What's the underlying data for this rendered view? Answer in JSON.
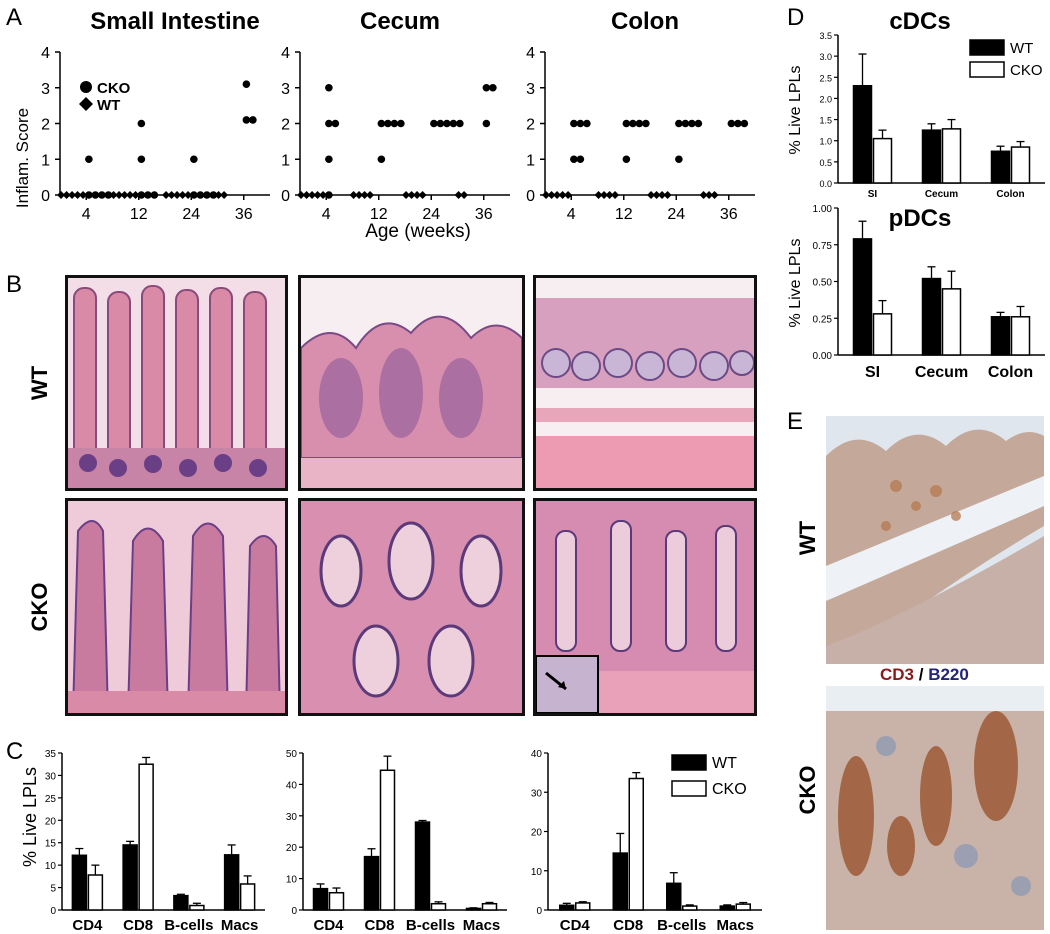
{
  "panels": {
    "A": {
      "label": "A",
      "titles": [
        "Small Intestine",
        "Cecum",
        "Colon"
      ],
      "ylabel": "Inflam. Score",
      "xlabel": "Age (weeks)",
      "legend": [
        "CKO",
        "WT"
      ]
    },
    "B": {
      "label": "B",
      "rows": [
        "WT",
        "CKO"
      ]
    },
    "C": {
      "label": "C",
      "ylabel": "% Live LPLs",
      "legend": [
        "WT",
        "CKO"
      ]
    },
    "D": {
      "label": "D",
      "titles": [
        "cDCs",
        "pDCs"
      ],
      "ylabel": "% Live LPLs",
      "legend": [
        "WT",
        "CKO"
      ]
    },
    "E": {
      "label": "E",
      "rows": [
        "WT",
        "CKO"
      ],
      "stain_cd3": "CD3",
      "stain_sep": " / ",
      "stain_b220": "B220"
    }
  },
  "chart_data": [
    {
      "type": "scatter",
      "panel": "A",
      "title": "Small Intestine",
      "ylabel": "Inflam. Score",
      "xlabel": "",
      "ylim": [
        0,
        4
      ],
      "x_ticks": [
        "4",
        "12",
        "24",
        "36"
      ],
      "series": [
        {
          "name": "WT",
          "groups": [
            [
              0,
              0,
              0,
              0,
              0
            ],
            [
              0,
              0,
              0,
              0,
              0
            ],
            [
              0,
              0,
              0,
              0,
              0
            ],
            [
              0,
              0
            ]
          ]
        },
        {
          "name": "CKO",
          "groups": [
            [
              1,
              0,
              0,
              0,
              0
            ],
            [
              2,
              1,
              0,
              0,
              0
            ],
            [
              1,
              0,
              0,
              0,
              0
            ],
            [
              3.1,
              2.1,
              2.1
            ]
          ]
        }
      ]
    },
    {
      "type": "scatter",
      "panel": "A",
      "title": "Cecum",
      "ylabel": "",
      "xlabel": "Age (weeks)",
      "ylim": [
        0,
        4
      ],
      "x_ticks": [
        "4",
        "12",
        "24",
        "36"
      ],
      "series": [
        {
          "name": "WT",
          "groups": [
            [
              0,
              0,
              0,
              0,
              0
            ],
            [
              0,
              0,
              0,
              0
            ],
            [
              0,
              0,
              0,
              0
            ],
            [
              0,
              0
            ]
          ]
        },
        {
          "name": "CKO",
          "groups": [
            [
              3,
              2,
              2,
              1,
              0
            ],
            [
              2,
              2,
              2,
              2,
              1
            ],
            [
              2,
              2,
              2,
              2,
              2
            ],
            [
              3,
              3,
              2
            ]
          ]
        }
      ]
    },
    {
      "type": "scatter",
      "panel": "A",
      "title": "Colon",
      "ylabel": "",
      "xlabel": "",
      "ylim": [
        0,
        4
      ],
      "x_ticks": [
        "4",
        "12",
        "24",
        "36"
      ],
      "series": [
        {
          "name": "WT",
          "groups": [
            [
              0,
              0,
              0,
              0,
              0
            ],
            [
              0,
              0,
              0,
              0
            ],
            [
              0,
              0,
              0,
              0
            ],
            [
              0,
              0,
              0
            ]
          ]
        },
        {
          "name": "CKO",
          "groups": [
            [
              2,
              2,
              2,
              1,
              1
            ],
            [
              2,
              2,
              2,
              2,
              1
            ],
            [
              2,
              2,
              2,
              2,
              1
            ],
            [
              2,
              2,
              2
            ]
          ]
        }
      ]
    },
    {
      "type": "bar",
      "panel": "C",
      "ylabel": "% Live LPLs",
      "ylim": [
        0,
        35
      ],
      "y_ticks": [
        0,
        5,
        10,
        15,
        20,
        25,
        30,
        35
      ],
      "categories": [
        "CD4",
        "CD8",
        "B-cells",
        "Macs"
      ],
      "series": [
        {
          "name": "WT",
          "values": [
            12.2,
            14.5,
            3.2,
            12.3
          ],
          "errors": [
            1.5,
            0.8,
            0.3,
            2.2
          ]
        },
        {
          "name": "CKO",
          "values": [
            7.8,
            32.5,
            1.0,
            5.8
          ],
          "errors": [
            2.2,
            1.5,
            0.5,
            1.8
          ]
        }
      ]
    },
    {
      "type": "bar",
      "panel": "C",
      "ylabel": "",
      "ylim": [
        0,
        50
      ],
      "y_ticks": [
        0,
        10,
        20,
        30,
        40,
        50
      ],
      "categories": [
        "CD4",
        "CD8",
        "B-cells",
        "Macs"
      ],
      "series": [
        {
          "name": "WT",
          "values": [
            6.8,
            17,
            28,
            0.5
          ],
          "errors": [
            1.5,
            2.5,
            0.5,
            0.2
          ]
        },
        {
          "name": "CKO",
          "values": [
            5.5,
            44.5,
            2,
            2
          ],
          "errors": [
            1.5,
            4.5,
            0.6,
            0.4
          ]
        }
      ]
    },
    {
      "type": "bar",
      "panel": "C",
      "ylabel": "",
      "ylim": [
        0,
        40
      ],
      "y_ticks": [
        0,
        10,
        20,
        30,
        40
      ],
      "categories": [
        "CD4",
        "CD8",
        "B-cells",
        "Macs"
      ],
      "series": [
        {
          "name": "WT",
          "values": [
            1.2,
            14.5,
            6.8,
            1.0
          ],
          "errors": [
            0.5,
            5.0,
            2.7,
            0.3
          ]
        },
        {
          "name": "CKO",
          "values": [
            1.8,
            33.5,
            1.0,
            1.5
          ],
          "errors": [
            0.3,
            1.5,
            0.3,
            0.4
          ]
        }
      ]
    },
    {
      "type": "bar",
      "panel": "D",
      "title": "cDCs",
      "ylabel": "% Live LPLs",
      "ylim": [
        0,
        3.5
      ],
      "y_ticks": [
        "0.0",
        "0.5",
        "1.0",
        "1.5",
        "2.0",
        "2.5",
        "3.0",
        "3.5"
      ],
      "categories": [
        "SI",
        "Cecum",
        "Colon"
      ],
      "series": [
        {
          "name": "WT",
          "values": [
            2.3,
            1.25,
            0.75
          ],
          "errors": [
            0.75,
            0.15,
            0.12
          ]
        },
        {
          "name": "CKO",
          "values": [
            1.05,
            1.28,
            0.85
          ],
          "errors": [
            0.2,
            0.22,
            0.13
          ]
        }
      ]
    },
    {
      "type": "bar",
      "panel": "D",
      "title": "pDCs",
      "ylabel": "% Live LPLs",
      "ylim": [
        0,
        1.0
      ],
      "y_ticks": [
        "0.00",
        "0.25",
        "0.50",
        "0.75",
        "1.00"
      ],
      "categories": [
        "SI",
        "Cecum",
        "Colon"
      ],
      "series": [
        {
          "name": "WT",
          "values": [
            0.79,
            0.52,
            0.26
          ],
          "errors": [
            0.12,
            0.08,
            0.03
          ]
        },
        {
          "name": "CKO",
          "values": [
            0.28,
            0.45,
            0.26
          ],
          "errors": [
            0.09,
            0.12,
            0.07
          ]
        }
      ]
    }
  ]
}
